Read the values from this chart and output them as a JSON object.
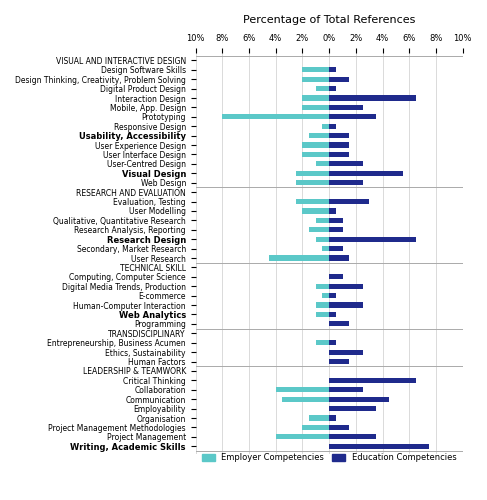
{
  "title": "Percentage of Total References",
  "categories": [
    "VISUAL AND INTERACTIVE DESIGN",
    "Design Software Skills",
    "Design Thinking, Creativity, Problem Solving",
    "Digital Product Design",
    "Interaction Design",
    "Mobile, App. Design",
    "Prototyping",
    "Responsive Design",
    "Usability, Accessibility",
    "User Experience Design",
    "User Interface Design",
    "User-Centred Design",
    "Visual Design",
    "Web Design",
    "RESEARCH AND EVALUATION",
    "Evaluation, Testing",
    "User Modelling",
    "Qualitative, Quantitative Research",
    "Research Analysis, Reporting",
    "Research Design",
    "Secondary, Market Research",
    "User Research",
    "TECHNICAL SKILL",
    "Computing, Computer Science",
    "Digital Media Trends, Production",
    "E-commerce",
    "Human-Computer Interaction",
    "Web Analytics",
    "Programming",
    "TRANSDISCIPLINARY",
    "Entrepreneurship, Business Acumen",
    "Ethics, Sustainability",
    "Human Factors",
    "LEADERSHIP & TEAMWORK",
    "Critical Thinking",
    "Collaboration",
    "Communication",
    "Employability",
    "Organisation",
    "Project Management Methodologies",
    "Project Management",
    "Writing, Academic Skills"
  ],
  "employer": [
    0,
    2.0,
    2.0,
    1.0,
    2.0,
    2.0,
    8.0,
    0.5,
    1.5,
    2.0,
    2.0,
    1.0,
    2.5,
    2.5,
    0,
    2.5,
    2.0,
    1.0,
    1.5,
    1.0,
    0.5,
    4.5,
    0,
    0.0,
    1.0,
    0.5,
    1.0,
    1.0,
    0.0,
    0,
    1.0,
    0.0,
    0.0,
    0,
    0.0,
    4.0,
    3.5,
    0.0,
    1.5,
    2.0,
    4.0,
    0.0
  ],
  "education": [
    0,
    0.5,
    1.5,
    0.5,
    6.5,
    2.5,
    3.5,
    0.5,
    1.5,
    1.5,
    1.5,
    2.5,
    5.5,
    2.5,
    0,
    3.0,
    0.5,
    1.0,
    1.0,
    6.5,
    1.0,
    1.5,
    0,
    1.0,
    2.5,
    0.5,
    2.5,
    0.5,
    1.5,
    0,
    0.5,
    2.5,
    1.5,
    0,
    6.5,
    2.5,
    4.5,
    3.5,
    0.5,
    1.5,
    3.5,
    7.5
  ],
  "section_headers": [
    "VISUAL AND INTERACTIVE DESIGN",
    "RESEARCH AND EVALUATION",
    "TECHNICAL SKILL",
    "TRANSDISCIPLINARY",
    "LEADERSHIP & TEAMWORK"
  ],
  "employer_color": "#5BC8C8",
  "education_color": "#1F2A8C",
  "background_color": "#ffffff",
  "xlim": 10
}
